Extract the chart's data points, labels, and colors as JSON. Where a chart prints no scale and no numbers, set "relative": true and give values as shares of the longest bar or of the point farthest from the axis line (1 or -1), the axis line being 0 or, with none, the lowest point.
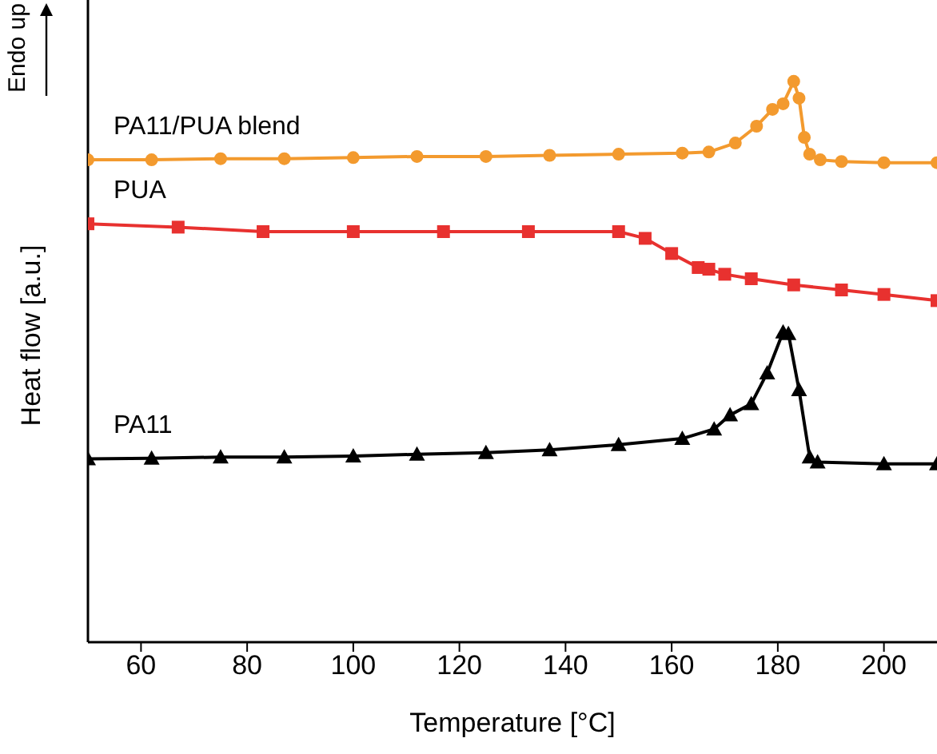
{
  "chart_data": {
    "type": "line",
    "relative": true,
    "xlabel": "Temperature [°C]",
    "ylabel": "Heat flow [a.u.]",
    "annotations": [
      "Endo up"
    ],
    "xlim": [
      50,
      210
    ],
    "xticks": [
      60,
      80,
      100,
      120,
      140,
      160,
      180,
      200
    ],
    "series": [
      {
        "name": "PA11/PUA blend",
        "color": "#f39a2e",
        "marker": "circle",
        "x": [
          50,
          62,
          75,
          87,
          100,
          112,
          125,
          137,
          150,
          162,
          167,
          172,
          176,
          179,
          181,
          183,
          184,
          185,
          186,
          188,
          192,
          200,
          210
        ],
        "values": [
          0.86,
          0.86,
          0.862,
          0.862,
          0.864,
          0.866,
          0.866,
          0.868,
          0.87,
          0.872,
          0.874,
          0.89,
          0.92,
          0.95,
          0.96,
          1.0,
          0.97,
          0.9,
          0.87,
          0.86,
          0.857,
          0.855,
          0.855
        ]
      },
      {
        "name": "PUA",
        "color": "#e8312f",
        "marker": "square",
        "x": [
          50,
          67,
          83,
          100,
          117,
          133,
          150,
          155,
          160,
          165,
          167,
          170,
          175,
          183,
          192,
          200,
          210
        ],
        "values": [
          0.746,
          0.74,
          0.732,
          0.732,
          0.732,
          0.732,
          0.732,
          0.72,
          0.693,
          0.668,
          0.665,
          0.656,
          0.648,
          0.637,
          0.628,
          0.62,
          0.609
        ]
      },
      {
        "name": "PA11",
        "color": "#000000",
        "marker": "triangle",
        "x": [
          50,
          62,
          75,
          87,
          100,
          112,
          125,
          137,
          150,
          162,
          168,
          171,
          175,
          178,
          181,
          182,
          184,
          186,
          187.5,
          200,
          210
        ],
        "values": [
          0.327,
          0.328,
          0.33,
          0.33,
          0.332,
          0.335,
          0.338,
          0.343,
          0.352,
          0.363,
          0.38,
          0.405,
          0.425,
          0.48,
          0.553,
          0.55,
          0.45,
          0.33,
          0.321,
          0.318,
          0.318
        ]
      }
    ]
  }
}
